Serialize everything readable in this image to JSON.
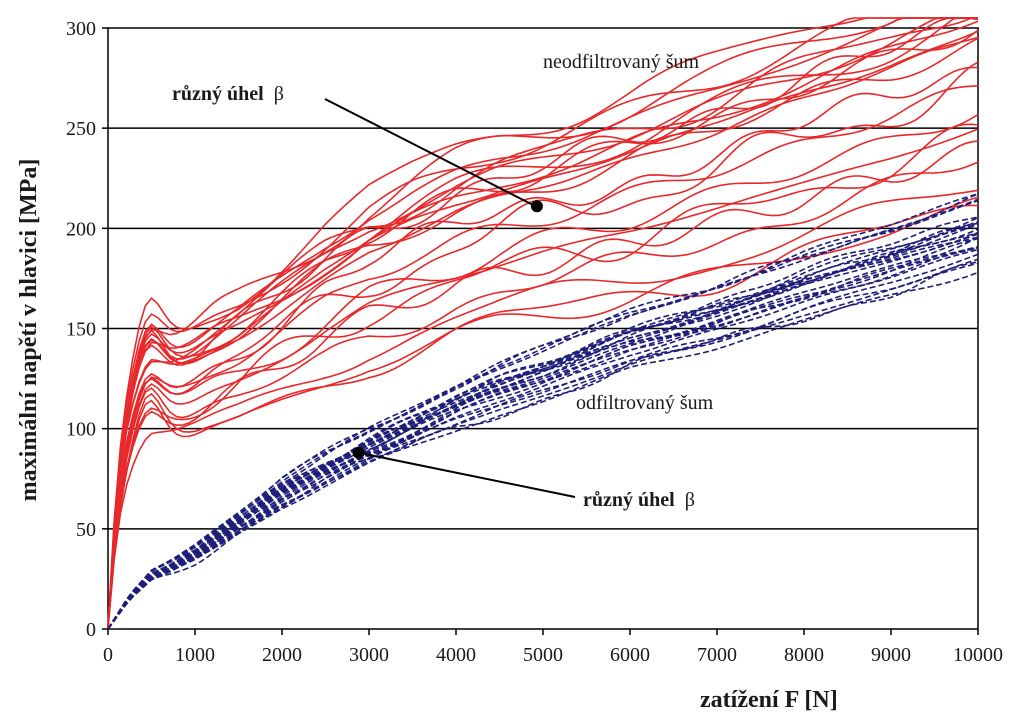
{
  "chart_data": {
    "type": "line",
    "xlabel": "zatížení  F [N]",
    "ylabel": "maximální napětí v hlavici [MPa]",
    "xlim": [
      0,
      10000
    ],
    "ylim": [
      0,
      300
    ],
    "xticks": [
      0,
      1000,
      2000,
      3000,
      4000,
      5000,
      6000,
      7000,
      8000,
      9000,
      10000
    ],
    "yticks": [
      0,
      50,
      100,
      150,
      200,
      250,
      300
    ],
    "grid": "horizontal",
    "groups": [
      {
        "label": "neodfiltrovaný šum",
        "color": "#e8292b",
        "dash": "solid",
        "curve_count": 24,
        "base": {
          "x": [
            0,
            100,
            200,
            300,
            400,
            500,
            700,
            1000,
            1500,
            2000,
            2500,
            3000,
            3500,
            4000,
            4500,
            5000,
            6000,
            7000,
            8000,
            9000,
            10000
          ],
          "y": [
            0,
            60,
            85,
            100,
            110,
            115,
            118,
            124,
            136,
            150,
            164,
            177,
            186,
            194,
            201,
            207,
            219,
            232,
            246,
            260,
            276
          ]
        }
      },
      {
        "label": "odfiltrovaný šum",
        "color": "#1f1f7a",
        "dash": "dashed",
        "curve_count": 26,
        "base": {
          "x": [
            0,
            250,
            500,
            750,
            1000,
            1500,
            2000,
            2500,
            3000,
            3500,
            4000,
            4500,
            5000,
            6000,
            7000,
            8000,
            9000,
            10000
          ],
          "y": [
            0,
            16,
            27,
            32,
            38,
            53,
            68,
            80,
            91,
            101,
            111,
            120,
            128,
            144,
            157,
            171,
            184,
            198
          ]
        }
      }
    ],
    "annotations": [
      {
        "text_bold": "různý úhel",
        "symbol": "β",
        "point": [
          4930,
          211
        ]
      },
      {
        "text": "neodfiltrovaný šum"
      },
      {
        "text": "odfiltrovaný šum"
      },
      {
        "text_bold": "různý úhel",
        "symbol": "β",
        "point": [
          2880,
          88
        ]
      }
    ]
  }
}
